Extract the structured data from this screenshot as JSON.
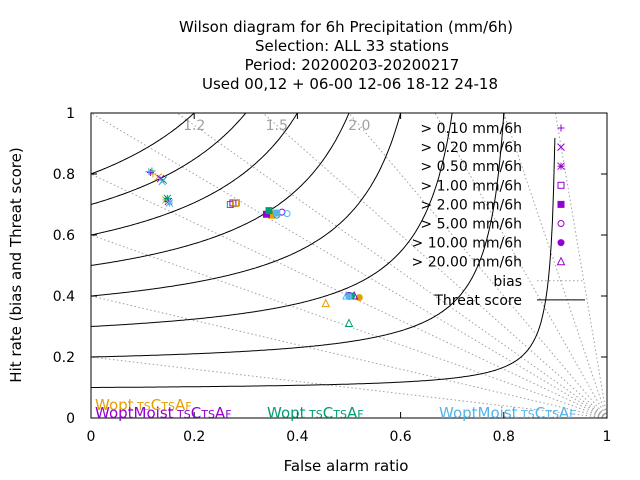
{
  "title_lines": [
    "Wilson diagram  for 6h Precipitation (mm/6h)",
    "Selection: ALL     33 stations",
    "Period: 20200203-20200217",
    "Used  00,12  + 06-00 12-06 18-12 24-18"
  ],
  "chart_data": {
    "type": "scatter",
    "xlabel": "False alarm ratio",
    "ylabel": "Hit rate (bias and Threat score)",
    "xlim": [
      0,
      1
    ],
    "ylim": [
      0,
      1
    ],
    "xticks": [
      "0",
      "0.2",
      "0.4",
      "0.6",
      "0.8",
      "1"
    ],
    "yticks": [
      "0",
      "0.2",
      "0.4",
      "0.6",
      "0.8",
      "1"
    ],
    "bias_values": [
      1.2,
      1.5,
      2.0,
      3.0,
      5.0,
      10.0,
      1.0,
      0.8,
      0.6,
      0.4,
      0.2
    ],
    "bias_labels_shown": [
      "1.2",
      "1.5",
      "2.0"
    ],
    "threat_score_values": [
      0.1,
      0.2,
      0.3,
      0.4,
      0.5,
      0.6,
      0.7,
      0.8
    ],
    "thresholds": [
      {
        "label": "> 0.10 mm/6h",
        "marker": "plus",
        "color": "#9400d3"
      },
      {
        "label": "> 0.20 mm/6h",
        "marker": "cross",
        "color": "#9400d3"
      },
      {
        "label": "> 0.50 mm/6h",
        "marker": "star",
        "color": "#9400d3"
      },
      {
        "label": "> 1.00 mm/6h",
        "marker": "square",
        "color": "#9400d3"
      },
      {
        "label": "> 2.00 mm/6h",
        "marker": "square-filled",
        "color": "#9400d3"
      },
      {
        "label": "> 5.00 mm/6h",
        "marker": "circle",
        "color": "#9400d3"
      },
      {
        "label": "> 10.00 mm/6h",
        "marker": "circle-filled",
        "color": "#9400d3"
      },
      {
        "label": "> 20.00 mm/6h",
        "marker": "triangle",
        "color": "#9400d3"
      }
    ],
    "legend_lines": [
      {
        "label": "bias",
        "style": "dotted",
        "color": "#a0a0a0"
      },
      {
        "label": "Threat score",
        "style": "solid",
        "color": "#000000"
      }
    ],
    "legend_position": "top-right",
    "models": [
      {
        "name": "Wopt",
        "subs": [
          "T",
          "S",
          "C",
          "T",
          "S",
          "A",
          "F"
        ],
        "color": "#e69f00"
      },
      {
        "name": "WoptMoist",
        "subs": [
          "T",
          "S",
          "C",
          "T",
          "S",
          "A",
          "F"
        ],
        "color": "#9400d3"
      },
      {
        "name": "Wopt",
        "subs": [
          "T",
          "S",
          "C",
          "T",
          "S",
          "A",
          "F"
        ],
        "color": "#009e73"
      },
      {
        "name": "WoptMoist",
        "subs": [
          "T",
          "S",
          "C",
          "T",
          "S",
          "A",
          "F"
        ],
        "color": "#56b4e9"
      }
    ],
    "series": [
      {
        "model": 0,
        "color": "#e69f00",
        "points": [
          {
            "x": 0.12,
            "y": 0.8,
            "m": 0
          },
          {
            "x": 0.13,
            "y": 0.79,
            "m": 1
          },
          {
            "x": 0.145,
            "y": 0.715,
            "m": 2
          },
          {
            "x": 0.28,
            "y": 0.703,
            "m": 3
          },
          {
            "x": 0.35,
            "y": 0.665,
            "m": 4
          },
          {
            "x": 0.355,
            "y": 0.67,
            "m": 5
          },
          {
            "x": 0.52,
            "y": 0.395,
            "m": 6
          },
          {
            "x": 0.455,
            "y": 0.375,
            "m": 7
          }
        ]
      },
      {
        "model": 1,
        "color": "#9400d3",
        "points": [
          {
            "x": 0.115,
            "y": 0.805,
            "m": 0
          },
          {
            "x": 0.135,
            "y": 0.785,
            "m": 1
          },
          {
            "x": 0.15,
            "y": 0.71,
            "m": 2
          },
          {
            "x": 0.275,
            "y": 0.705,
            "m": 3
          },
          {
            "x": 0.34,
            "y": 0.668,
            "m": 4
          },
          {
            "x": 0.37,
            "y": 0.675,
            "m": 5
          },
          {
            "x": 0.5,
            "y": 0.402,
            "m": 6
          },
          {
            "x": 0.51,
            "y": 0.4,
            "m": 7
          }
        ]
      },
      {
        "model": 2,
        "color": "#009e73",
        "points": [
          {
            "x": 0.118,
            "y": 0.81,
            "m": 0
          },
          {
            "x": 0.14,
            "y": 0.78,
            "m": 1
          },
          {
            "x": 0.148,
            "y": 0.72,
            "m": 2
          },
          {
            "x": 0.27,
            "y": 0.7,
            "m": 3
          },
          {
            "x": 0.345,
            "y": 0.68,
            "m": 4
          },
          {
            "x": 0.36,
            "y": 0.665,
            "m": 5
          },
          {
            "x": 0.505,
            "y": 0.4,
            "m": 6
          },
          {
            "x": 0.5,
            "y": 0.31,
            "m": 7
          }
        ]
      },
      {
        "model": 3,
        "color": "#56b4e9",
        "points": [
          {
            "x": 0.112,
            "y": 0.808,
            "m": 0
          },
          {
            "x": 0.138,
            "y": 0.775,
            "m": 1
          },
          {
            "x": 0.152,
            "y": 0.705,
            "m": 2
          },
          {
            "x": 0.282,
            "y": 0.706,
            "m": 3
          },
          {
            "x": 0.36,
            "y": 0.672,
            "m": 4
          },
          {
            "x": 0.38,
            "y": 0.67,
            "m": 5
          },
          {
            "x": 0.5,
            "y": 0.398,
            "m": 6
          },
          {
            "x": 0.495,
            "y": 0.4,
            "m": 7
          }
        ]
      }
    ]
  }
}
